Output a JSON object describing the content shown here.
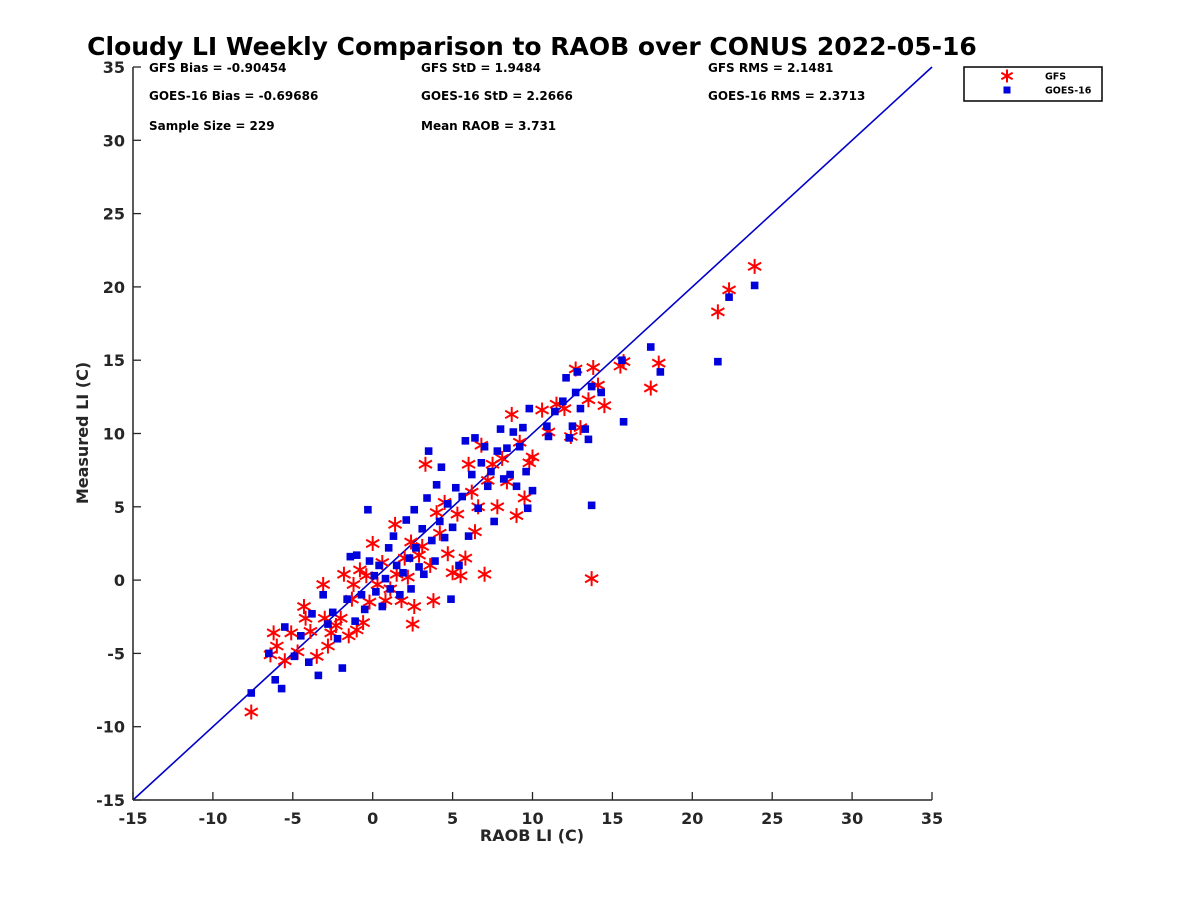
{
  "chart_data": {
    "type": "scatter",
    "title": "Cloudy LI Weekly Comparison to RAOB over CONUS 2022-05-16",
    "xlabel": "RAOB LI (C)",
    "ylabel": "Measured LI (C)",
    "xlim": [
      -15,
      35
    ],
    "ylim": [
      -15,
      35
    ],
    "xticks": [
      "-15",
      "-10",
      "-5",
      "0",
      "5",
      "10",
      "15",
      "20",
      "25",
      "30",
      "35"
    ],
    "yticks": [
      "-15",
      "-10",
      "-5",
      "0",
      "5",
      "10",
      "15",
      "20",
      "25",
      "30",
      "35"
    ],
    "grid": false,
    "legend_position": "outside-top-right",
    "reference_line": {
      "from": [
        -15,
        -15
      ],
      "to": [
        35,
        35
      ],
      "color": "#0000cc"
    },
    "stats": [
      "GFS Bias = -0.90454",
      "GFS StD = 1.9484",
      "GFS RMS = 2.1481",
      "GOES-16 Bias = -0.69686",
      "GOES-16 StD = 2.2666",
      "GOES-16 RMS = 2.3713",
      "Sample Size = 229",
      "Mean RAOB = 3.731"
    ],
    "series": [
      {
        "name": "GFS",
        "marker": "asterisk",
        "color": "#ff0000",
        "points": [
          [
            -7.6,
            -9.0
          ],
          [
            -6.4,
            -5.1
          ],
          [
            -6.2,
            -3.6
          ],
          [
            -6.0,
            -4.5
          ],
          [
            -5.5,
            -5.5
          ],
          [
            -5.1,
            -3.6
          ],
          [
            -4.7,
            -4.9
          ],
          [
            -4.3,
            -1.8
          ],
          [
            -4.2,
            -2.6
          ],
          [
            -3.9,
            -3.5
          ],
          [
            -3.5,
            -5.2
          ],
          [
            -3.1,
            -0.3
          ],
          [
            -3.0,
            -2.6
          ],
          [
            -2.8,
            -4.5
          ],
          [
            -2.6,
            -3.6
          ],
          [
            -2.3,
            -3.1
          ],
          [
            -2.0,
            -2.6
          ],
          [
            -1.8,
            0.4
          ],
          [
            -1.5,
            -3.8
          ],
          [
            -1.3,
            -1.3
          ],
          [
            -1.2,
            -0.3
          ],
          [
            -1.0,
            -3.4
          ],
          [
            -0.8,
            0.7
          ],
          [
            -0.6,
            -2.9
          ],
          [
            -0.4,
            0.3
          ],
          [
            -0.2,
            -1.5
          ],
          [
            0.0,
            2.5
          ],
          [
            0.3,
            -0.3
          ],
          [
            0.6,
            1.2
          ],
          [
            0.8,
            -1.4
          ],
          [
            1.1,
            -0.6
          ],
          [
            1.4,
            3.8
          ],
          [
            1.5,
            0.4
          ],
          [
            1.8,
            -1.4
          ],
          [
            2.0,
            1.5
          ],
          [
            2.2,
            0.2
          ],
          [
            2.4,
            2.6
          ],
          [
            2.5,
            -3.0
          ],
          [
            2.6,
            -1.8
          ],
          [
            2.9,
            1.7
          ],
          [
            3.1,
            2.3
          ],
          [
            3.3,
            7.9
          ],
          [
            3.6,
            1.0
          ],
          [
            3.8,
            -1.4
          ],
          [
            4.0,
            4.6
          ],
          [
            4.2,
            3.2
          ],
          [
            4.5,
            5.3
          ],
          [
            4.7,
            1.8
          ],
          [
            5.0,
            0.5
          ],
          [
            5.3,
            4.5
          ],
          [
            5.5,
            0.3
          ],
          [
            5.8,
            1.5
          ],
          [
            6.0,
            7.9
          ],
          [
            6.2,
            6.0
          ],
          [
            6.4,
            3.3
          ],
          [
            6.6,
            5.0
          ],
          [
            6.8,
            9.2
          ],
          [
            7.0,
            0.4
          ],
          [
            7.2,
            6.8
          ],
          [
            7.5,
            7.9
          ],
          [
            7.8,
            5.0
          ],
          [
            8.1,
            8.3
          ],
          [
            8.4,
            6.7
          ],
          [
            8.7,
            11.3
          ],
          [
            9.0,
            4.4
          ],
          [
            9.2,
            9.4
          ],
          [
            9.5,
            5.6
          ],
          [
            9.8,
            8.0
          ],
          [
            10.0,
            8.4
          ],
          [
            10.6,
            11.6
          ],
          [
            11.0,
            10.1
          ],
          [
            11.5,
            12.0
          ],
          [
            12.0,
            11.7
          ],
          [
            12.4,
            9.8
          ],
          [
            12.7,
            14.4
          ],
          [
            13.0,
            10.4
          ],
          [
            13.5,
            12.3
          ],
          [
            13.8,
            14.5
          ],
          [
            13.7,
            0.1
          ],
          [
            14.1,
            13.3
          ],
          [
            14.5,
            11.9
          ],
          [
            15.5,
            14.6
          ],
          [
            15.7,
            14.9
          ],
          [
            17.4,
            13.1
          ],
          [
            17.9,
            14.8
          ],
          [
            21.6,
            18.3
          ],
          [
            22.3,
            19.8
          ],
          [
            23.9,
            21.4
          ]
        ]
      },
      {
        "name": "GOES-16",
        "marker": "square",
        "color": "#0000dd",
        "points": [
          [
            -7.6,
            -7.7
          ],
          [
            -6.5,
            -5.0
          ],
          [
            -6.1,
            -6.8
          ],
          [
            -5.7,
            -7.4
          ],
          [
            -5.5,
            -3.2
          ],
          [
            -4.9,
            -5.2
          ],
          [
            -4.5,
            -3.8
          ],
          [
            -4.0,
            -5.6
          ],
          [
            -3.8,
            -2.3
          ],
          [
            -3.4,
            -6.5
          ],
          [
            -3.1,
            -1.0
          ],
          [
            -2.8,
            -3.0
          ],
          [
            -2.5,
            -2.2
          ],
          [
            -2.2,
            -4.0
          ],
          [
            -1.9,
            -6.0
          ],
          [
            -1.6,
            -1.3
          ],
          [
            -1.4,
            1.6
          ],
          [
            -1.1,
            -2.8
          ],
          [
            -1.0,
            1.7
          ],
          [
            -0.7,
            -1.0
          ],
          [
            -0.5,
            -2.0
          ],
          [
            -0.3,
            4.8
          ],
          [
            -0.2,
            1.3
          ],
          [
            0.1,
            0.3
          ],
          [
            0.2,
            -0.8
          ],
          [
            0.4,
            1.0
          ],
          [
            0.6,
            -1.8
          ],
          [
            0.8,
            0.1
          ],
          [
            1.0,
            2.2
          ],
          [
            1.1,
            -0.6
          ],
          [
            1.3,
            3.0
          ],
          [
            1.5,
            1.0
          ],
          [
            1.7,
            -1.0
          ],
          [
            1.9,
            0.5
          ],
          [
            2.1,
            4.1
          ],
          [
            2.3,
            1.5
          ],
          [
            2.4,
            -0.6
          ],
          [
            2.6,
            4.8
          ],
          [
            2.7,
            2.2
          ],
          [
            2.9,
            0.9
          ],
          [
            3.1,
            3.5
          ],
          [
            3.2,
            0.4
          ],
          [
            3.4,
            5.6
          ],
          [
            3.5,
            8.8
          ],
          [
            3.7,
            2.7
          ],
          [
            3.9,
            1.3
          ],
          [
            4.0,
            6.5
          ],
          [
            4.2,
            4.0
          ],
          [
            4.3,
            7.7
          ],
          [
            4.5,
            2.9
          ],
          [
            4.7,
            5.2
          ],
          [
            4.9,
            -1.3
          ],
          [
            5.0,
            3.6
          ],
          [
            5.2,
            6.3
          ],
          [
            5.4,
            1.0
          ],
          [
            5.6,
            5.7
          ],
          [
            5.8,
            9.5
          ],
          [
            6.0,
            3.0
          ],
          [
            6.2,
            7.2
          ],
          [
            6.4,
            9.7
          ],
          [
            6.6,
            4.9
          ],
          [
            6.8,
            8.0
          ],
          [
            7.0,
            9.1
          ],
          [
            7.2,
            6.4
          ],
          [
            7.4,
            7.4
          ],
          [
            7.6,
            4.0
          ],
          [
            7.8,
            8.8
          ],
          [
            8.0,
            10.3
          ],
          [
            8.2,
            6.9
          ],
          [
            8.4,
            9.0
          ],
          [
            8.6,
            7.2
          ],
          [
            8.8,
            10.1
          ],
          [
            9.0,
            6.4
          ],
          [
            9.2,
            9.1
          ],
          [
            9.4,
            10.4
          ],
          [
            9.6,
            7.4
          ],
          [
            9.7,
            4.9
          ],
          [
            9.8,
            11.7
          ],
          [
            10.0,
            6.1
          ],
          [
            10.9,
            10.5
          ],
          [
            11.0,
            9.8
          ],
          [
            11.4,
            11.5
          ],
          [
            11.9,
            12.2
          ],
          [
            12.1,
            13.8
          ],
          [
            12.3,
            9.7
          ],
          [
            12.5,
            10.5
          ],
          [
            12.7,
            12.8
          ],
          [
            12.8,
            14.2
          ],
          [
            13.0,
            11.7
          ],
          [
            13.3,
            10.3
          ],
          [
            13.5,
            9.6
          ],
          [
            13.7,
            5.1
          ],
          [
            13.7,
            13.2
          ],
          [
            14.3,
            12.8
          ],
          [
            15.7,
            10.8
          ],
          [
            15.6,
            15.0
          ],
          [
            17.4,
            15.9
          ],
          [
            18.0,
            14.2
          ],
          [
            21.6,
            14.9
          ],
          [
            22.3,
            19.3
          ],
          [
            23.9,
            20.1
          ]
        ]
      }
    ]
  }
}
